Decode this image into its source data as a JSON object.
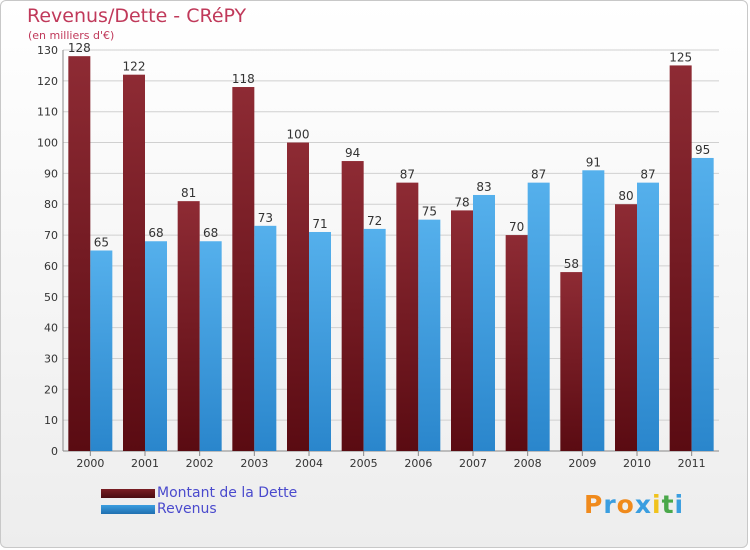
{
  "header": {
    "title": "Revenus/Dette - CRéPY",
    "subtitle": "(en milliers d'€)"
  },
  "chart_data": {
    "type": "bar",
    "categories": [
      "2000",
      "2001",
      "2002",
      "2003",
      "2004",
      "2005",
      "2006",
      "2007",
      "2008",
      "2009",
      "2010",
      "2011"
    ],
    "series": [
      {
        "name": "Montant de la Dette",
        "color": "#7a1e24",
        "values": [
          128,
          122,
          81,
          118,
          100,
          94,
          87,
          78,
          70,
          58,
          80,
          125
        ]
      },
      {
        "name": "Revenus",
        "color": "#3a9ee0",
        "values": [
          65,
          68,
          68,
          73,
          71,
          72,
          75,
          83,
          87,
          91,
          87,
          95
        ]
      }
    ],
    "ylim": [
      0,
      130
    ],
    "yticks": [
      0,
      10,
      20,
      30,
      40,
      50,
      60,
      70,
      80,
      90,
      100,
      110,
      120,
      130
    ],
    "grid": true,
    "legend_position": "bottom-left"
  },
  "legend": {
    "items": [
      {
        "label": "Montant de la Dette",
        "color": "#7a1e24"
      },
      {
        "label": "Revenus",
        "color": "#3a9ee0"
      }
    ]
  },
  "logo": {
    "letters": [
      {
        "ch": "P",
        "color": "#f08a1c"
      },
      {
        "ch": "r",
        "color": "#3a9ee0"
      },
      {
        "ch": "o",
        "color": "#f08a1c"
      },
      {
        "ch": "x",
        "color": "#3a9ee0"
      },
      {
        "ch": "i",
        "color": "#f0c21c"
      },
      {
        "ch": "t",
        "color": "#4aa84a"
      },
      {
        "ch": "i",
        "color": "#3a9ee0"
      }
    ]
  }
}
